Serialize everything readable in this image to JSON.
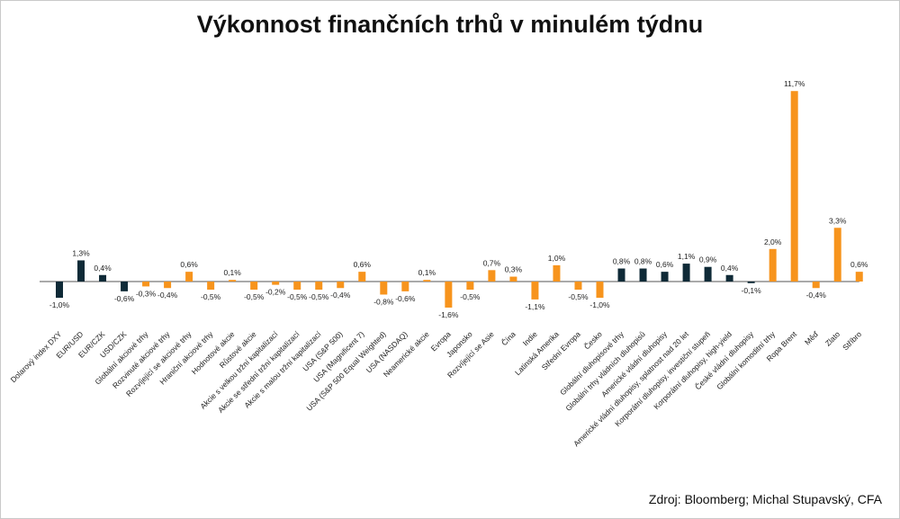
{
  "colors": {
    "dark": "#0f2a37",
    "orange": "#f7941d",
    "axis": "#555555"
  },
  "chart_data": {
    "type": "bar",
    "title": "Výkonnost finančních trhů v minulém týdnu",
    "source": "Zdroj: Bloomberg; Michal Stupavský, CFA",
    "unit": "%",
    "categories": [
      "Dolarový index DXY",
      "EUR/USD",
      "EUR/CZK",
      "USD/CZK",
      "Globální akciové trhy",
      "Rozvinuté akciové trhy",
      "Rozvíjející se akciové trhy",
      "Hraniční akciové trhy",
      "Hodnotové akcie",
      "Růstové akcie",
      "Akcie s velkou tržní kapitalizací",
      "Akcie se střední tržní kapitalizací",
      "Akcie s malou tržní kapitalizací",
      "USA (S&P 500)",
      "USA (Magnificent 7)",
      "USA (S&P 500 Equal Weighted)",
      "USA (NASDAQ)",
      "Neamerické akcie",
      "Evropa",
      "Japonsko",
      "Rozvíjející se Asie",
      "Čína",
      "Indie",
      "Latinská Amerika",
      "Střední Evropa",
      "Česko",
      "Globální dluhopisové trhy",
      "Globální trhy vládních dluhopisů",
      "Americké vládní dluhopisy",
      "Americké vládní dluhopisy, splatnost nad 20 let",
      "Korporátní dluhopisy, investiční stupeň",
      "Korporátní dluhopisy, high-yield",
      "České vládní dluhopisy",
      "Globální komoditní trhy",
      "Ropa Brent",
      "Měď",
      "Zlato",
      "Stříbro"
    ],
    "values": [
      -1.0,
      1.3,
      0.4,
      -0.6,
      -0.3,
      -0.4,
      0.6,
      -0.5,
      0.1,
      -0.5,
      -0.2,
      -0.5,
      -0.5,
      -0.4,
      0.6,
      -0.8,
      -0.6,
      0.1,
      -1.6,
      -0.5,
      0.7,
      0.3,
      -1.1,
      1.0,
      -0.5,
      -1.0,
      0.8,
      0.8,
      0.6,
      1.1,
      0.9,
      0.4,
      -0.1,
      2.0,
      11.7,
      -0.4,
      3.3,
      0.6
    ],
    "value_labels": [
      "-1,0%",
      "1,3%",
      "0,4%",
      "-0,6%",
      "-0,3%",
      "-0,4%",
      "0,6%",
      "-0,5%",
      "0,1%",
      "-0,5%",
      "-0,2%",
      "-0,5%",
      "-0,5%",
      "-0,4%",
      "0,6%",
      "-0,8%",
      "-0,6%",
      "0,1%",
      "-1,6%",
      "-0,5%",
      "0,7%",
      "0,3%",
      "-1,1%",
      "1,0%",
      "-0,5%",
      "-1,0%",
      "0,8%",
      "0,8%",
      "0,6%",
      "1,1%",
      "0,9%",
      "0,4%",
      "-0,1%",
      "2,0%",
      "11,7%",
      "-0,4%",
      "3,3%",
      "0,6%"
    ],
    "bar_colors": [
      "dark",
      "dark",
      "dark",
      "dark",
      "orange",
      "orange",
      "orange",
      "orange",
      "orange",
      "orange",
      "orange",
      "orange",
      "orange",
      "orange",
      "orange",
      "orange",
      "orange",
      "orange",
      "orange",
      "orange",
      "orange",
      "orange",
      "orange",
      "orange",
      "orange",
      "orange",
      "dark",
      "dark",
      "dark",
      "dark",
      "dark",
      "dark",
      "dark",
      "orange",
      "orange",
      "orange",
      "orange",
      "orange"
    ],
    "legend": "none",
    "grid": false,
    "y_axis_visible": false
  }
}
